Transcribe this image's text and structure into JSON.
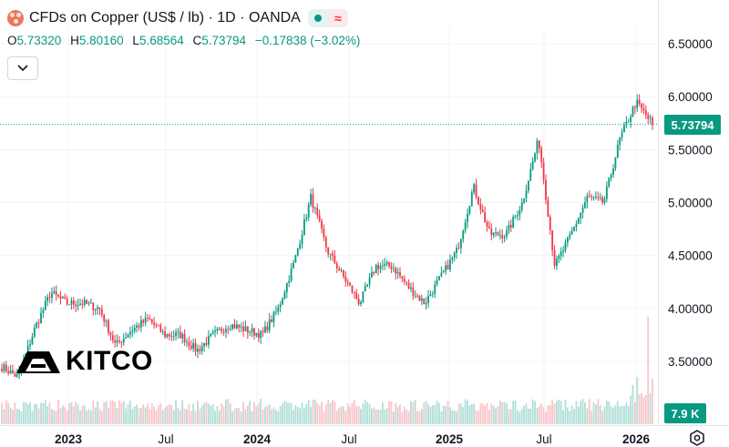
{
  "header": {
    "title": "CFDs on Copper (US$ / lb) · 1D · OANDA",
    "ohlc": [
      {
        "key": "O",
        "value": "5.73320"
      },
      {
        "key": "H",
        "value": "5.80160"
      },
      {
        "key": "L",
        "value": "5.68564"
      },
      {
        "key": "C",
        "value": "5.73794"
      }
    ],
    "change": "−0.17838 (−3.02%)"
  },
  "price_label": "5.73794",
  "volume_label": "7.9 K",
  "logo_text": "KITCO",
  "colors": {
    "up": "#089981",
    "down": "#f23645",
    "grid": "#f0f3fa",
    "text": "#131722"
  },
  "chart_data": {
    "type": "candlestick",
    "ylim": [
      3.2,
      6.6
    ],
    "yticks": [
      "3.50000",
      "4.00000",
      "4.50000",
      "5.00000",
      "5.50000",
      "6.00000",
      "6.50000"
    ],
    "xticks": [
      "2023",
      "Jul",
      "2024",
      "Jul",
      "2025",
      "Jul",
      "2026"
    ],
    "last_price": 5.73794,
    "series_close_approx": [
      {
        "x": "2022-10",
        "y": 3.45
      },
      {
        "x": "2022-11",
        "y": 3.35
      },
      {
        "x": "2022-12",
        "y": 3.8
      },
      {
        "x": "2023-01",
        "y": 4.15
      },
      {
        "x": "2023-02",
        "y": 4.05
      },
      {
        "x": "2023-03",
        "y": 4.05
      },
      {
        "x": "2023-04",
        "y": 4.0
      },
      {
        "x": "2023-05",
        "y": 3.65
      },
      {
        "x": "2023-06",
        "y": 3.8
      },
      {
        "x": "2023-07",
        "y": 3.9
      },
      {
        "x": "2023-08",
        "y": 3.75
      },
      {
        "x": "2023-09",
        "y": 3.75
      },
      {
        "x": "2023-10",
        "y": 3.6
      },
      {
        "x": "2023-11",
        "y": 3.75
      },
      {
        "x": "2023-12",
        "y": 3.85
      },
      {
        "x": "2024-01",
        "y": 3.8
      },
      {
        "x": "2024-02",
        "y": 3.75
      },
      {
        "x": "2024-03",
        "y": 4.0
      },
      {
        "x": "2024-04",
        "y": 4.45
      },
      {
        "x": "2024-05",
        "y": 5.05
      },
      {
        "x": "2024-06",
        "y": 4.55
      },
      {
        "x": "2024-07",
        "y": 4.3
      },
      {
        "x": "2024-08",
        "y": 4.05
      },
      {
        "x": "2024-09",
        "y": 4.4
      },
      {
        "x": "2024-10",
        "y": 4.4
      },
      {
        "x": "2024-11",
        "y": 4.2
      },
      {
        "x": "2024-12",
        "y": 4.05
      },
      {
        "x": "2025-01",
        "y": 4.3
      },
      {
        "x": "2025-02",
        "y": 4.55
      },
      {
        "x": "2025-03",
        "y": 5.15
      },
      {
        "x": "2025-04",
        "y": 4.7
      },
      {
        "x": "2025-05",
        "y": 4.7
      },
      {
        "x": "2025-06",
        "y": 5.0
      },
      {
        "x": "2025-07",
        "y": 5.6
      },
      {
        "x": "2025-08",
        "y": 4.4
      },
      {
        "x": "2025-09",
        "y": 4.7
      },
      {
        "x": "2025-10",
        "y": 5.05
      },
      {
        "x": "2025-11",
        "y": 5.0
      },
      {
        "x": "2025-12",
        "y": 5.6
      },
      {
        "x": "2026-01",
        "y": 5.95
      },
      {
        "x": "2026-01-late",
        "y": 5.74
      }
    ]
  }
}
